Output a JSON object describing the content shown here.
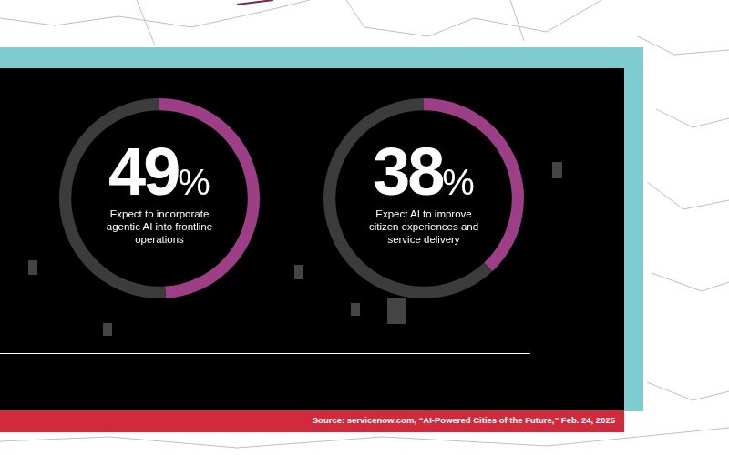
{
  "chart_data": [
    {
      "type": "doughnut",
      "values": [
        49
      ],
      "value_labels": [
        "49%"
      ],
      "ylim": [
        0,
        100
      ],
      "data_labels": true,
      "subtitle": "Expect to incorporate agentic AI into frontline operations",
      "color": "#9c3f87"
    },
    {
      "type": "doughnut",
      "values": [
        38
      ],
      "value_labels": [
        "38%"
      ],
      "ylim": [
        0,
        100
      ],
      "data_labels": true,
      "subtitle": "Expect AI to improve citizen experiences and service delivery",
      "color": "#9c3f87"
    }
  ],
  "source": "Source: servicenow.com, “AI-Powered Cities of the Future,” Feb. 24, 2025"
}
